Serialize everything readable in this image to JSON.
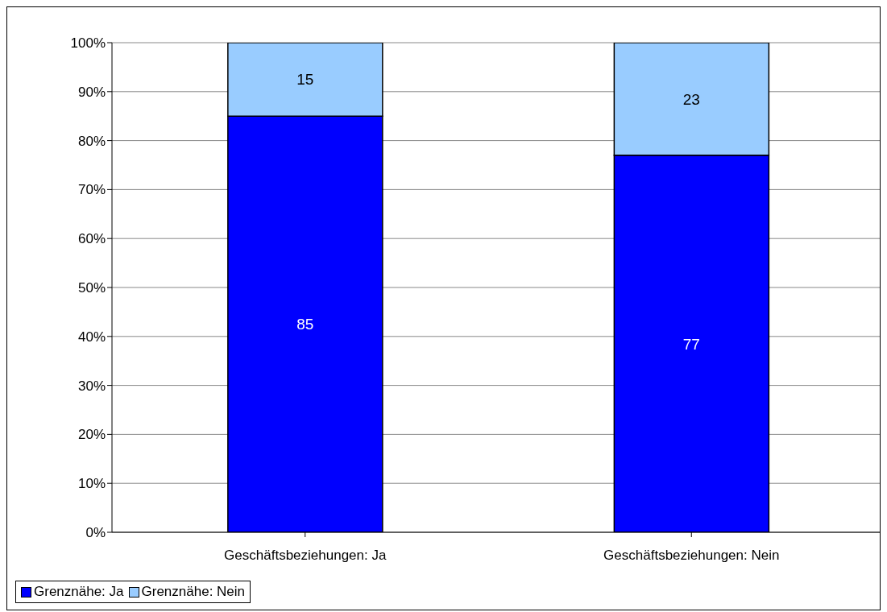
{
  "chart_data": {
    "type": "bar",
    "stacked": true,
    "categories": [
      "Geschäftsbeziehungen: Ja",
      "Geschäftsbeziehungen: Nein"
    ],
    "series": [
      {
        "name": "Grenznähe: Ja",
        "color": "#0000ff",
        "values": [
          85,
          77
        ]
      },
      {
        "name": "Grenznähe: Nein",
        "color": "#99ccff",
        "values": [
          15,
          23
        ]
      }
    ],
    "ylim": [
      0,
      100
    ],
    "yticks": [
      {
        "value": 0,
        "label": "0%"
      },
      {
        "value": 10,
        "label": "10%"
      },
      {
        "value": 20,
        "label": "20%"
      },
      {
        "value": 30,
        "label": "30%"
      },
      {
        "value": 40,
        "label": "40%"
      },
      {
        "value": 50,
        "label": "50%"
      },
      {
        "value": 60,
        "label": "60%"
      },
      {
        "value": 70,
        "label": "70%"
      },
      {
        "value": 80,
        "label": "80%"
      },
      {
        "value": 90,
        "label": "90%"
      },
      {
        "value": 100,
        "label": "100%"
      }
    ],
    "grid": "y",
    "legend": "bottom",
    "data_labels": true
  }
}
